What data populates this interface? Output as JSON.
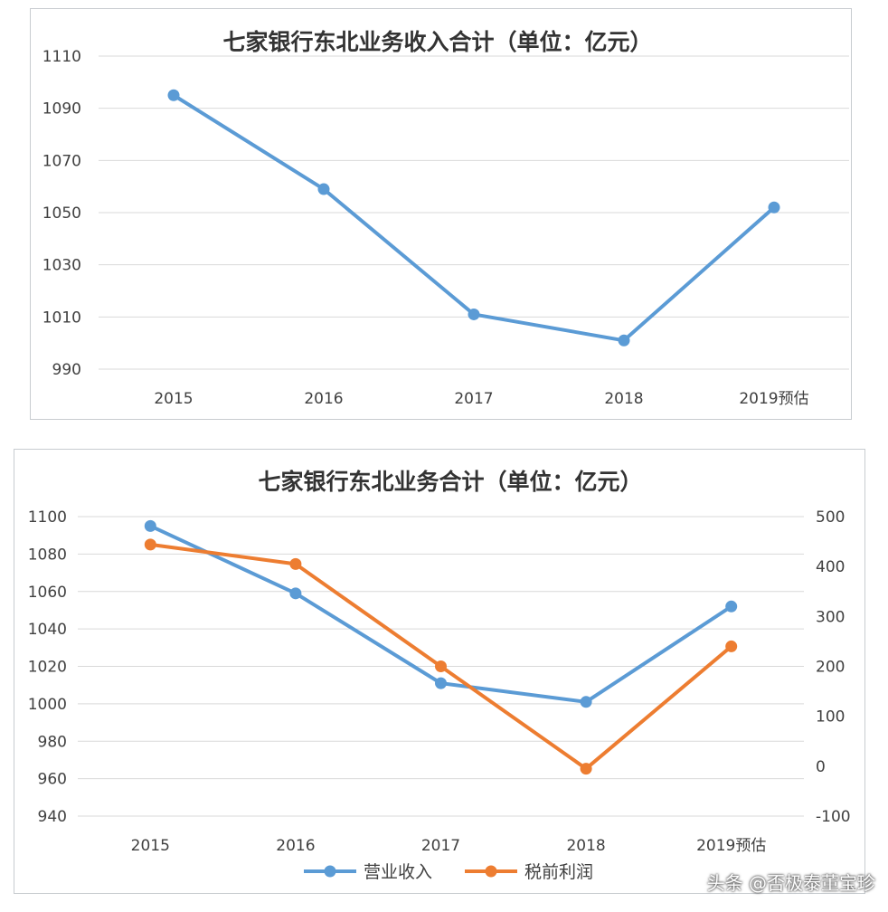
{
  "chart_data": [
    {
      "type": "line",
      "title": "七家银行东北业务收入合计（单位：亿元）",
      "categories": [
        "2015",
        "2016",
        "2017",
        "2018",
        "2019预估"
      ],
      "ylim": [
        990,
        1110
      ],
      "yticks": [
        "1110",
        "1090",
        "1070",
        "1050",
        "1030",
        "1010",
        "990"
      ],
      "grid": true,
      "series": [
        {
          "values": [
            1095,
            1059,
            1011,
            1001,
            1052
          ],
          "color": "#5b9bd5"
        }
      ]
    },
    {
      "type": "line",
      "title": "七家银行东北业务合计（单位：亿元）",
      "categories": [
        "2015",
        "2016",
        "2017",
        "2018",
        "2019预估"
      ],
      "ylim": [
        940,
        1100
      ],
      "yticks": [
        "1100",
        "1080",
        "1060",
        "1040",
        "1020",
        "1000",
        "980",
        "960",
        "940"
      ],
      "y2lim": [
        -100,
        500
      ],
      "y2ticks": [
        "500",
        "400",
        "300",
        "200",
        "100",
        "0",
        "-100"
      ],
      "grid": true,
      "legend": "bottom",
      "series": [
        {
          "name": "营业收入",
          "axis": "left",
          "values": [
            1095,
            1059,
            1011,
            1001,
            1052
          ],
          "color": "#5b9bd5"
        },
        {
          "name": "税前利润",
          "axis": "right",
          "values": [
            444,
            405,
            200,
            -5,
            240
          ],
          "color": "#ed7d31"
        }
      ]
    }
  ],
  "watermark": "头条 @否极泰董宝珍"
}
